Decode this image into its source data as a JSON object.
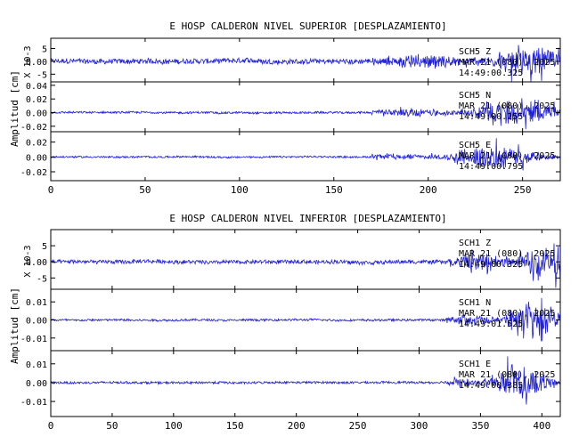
{
  "figure": {
    "waveform_color": "#1f1fd6",
    "axis_color": "#000000"
  },
  "chart_data": [
    {
      "type": "line",
      "title": "E HOSP CALDERON NIVEL SUPERIOR [DESPLAZAMIENTO]",
      "ylabel": "Amplitud [cm]",
      "xlim": [
        0,
        270
      ],
      "xticks": [
        0,
        50,
        100,
        150,
        200,
        250
      ],
      "event_onset": 170,
      "panels": [
        {
          "ylim": [
            -8,
            9
          ],
          "yticks": [
            -5,
            0,
            5
          ],
          "scale_label": "X 10-3",
          "noise": 1.0,
          "peak": 8.0,
          "annotation": [
            "SCH5   Z",
            "MAR 21 (080), 2025",
            "14:49:00.325"
          ]
        },
        {
          "ylim": [
            -0.028,
            0.045
          ],
          "yticks": [
            -0.02,
            0.0,
            0.02,
            0.04
          ],
          "scale_label": "",
          "noise": 0.0015,
          "peak": 0.028,
          "annotation": [
            "SCH5   N",
            "MAR 21 (080), 2025",
            "14:49:00.255"
          ]
        },
        {
          "ylim": [
            -0.032,
            0.034
          ],
          "yticks": [
            -0.02,
            0.0,
            0.02
          ],
          "scale_label": "",
          "noise": 0.0012,
          "peak": 0.026,
          "annotation": [
            "SCH5   E",
            "MAR 21 (080), 2025",
            "14:49:00.795"
          ]
        }
      ]
    },
    {
      "type": "line",
      "title": "E HOSP CALDERON NIVEL INFERIOR [DESPLAZAMIENTO]",
      "ylabel": "Amplitud [cm]",
      "xlim": [
        0,
        415
      ],
      "xticks": [
        0,
        50,
        100,
        150,
        200,
        250,
        300,
        350,
        400
      ],
      "event_onset": 322,
      "panels": [
        {
          "ylim": [
            -8.5,
            10
          ],
          "yticks": [
            -5,
            0,
            5
          ],
          "scale_label": "X 10-3",
          "noise": 0.6,
          "peak": 9.0,
          "annotation": [
            "SCH1   Z",
            "MAR 21 (080), 2025",
            "14:49:00.325"
          ]
        },
        {
          "ylim": [
            -0.017,
            0.017
          ],
          "yticks": [
            -0.01,
            0.0,
            0.01
          ],
          "scale_label": "",
          "noise": 0.0006,
          "peak": 0.017,
          "annotation": [
            "SCH1   N",
            "MAR 21 (080), 2025",
            "14:49:01.525"
          ]
        },
        {
          "ylim": [
            -0.018,
            0.017
          ],
          "yticks": [
            -0.01,
            0.0,
            0.01
          ],
          "scale_label": "",
          "noise": 0.0006,
          "peak": 0.015,
          "annotation": [
            "SCH1   E",
            "MAR 21 (080), 2025",
            "14:49:00.385"
          ]
        }
      ]
    }
  ]
}
